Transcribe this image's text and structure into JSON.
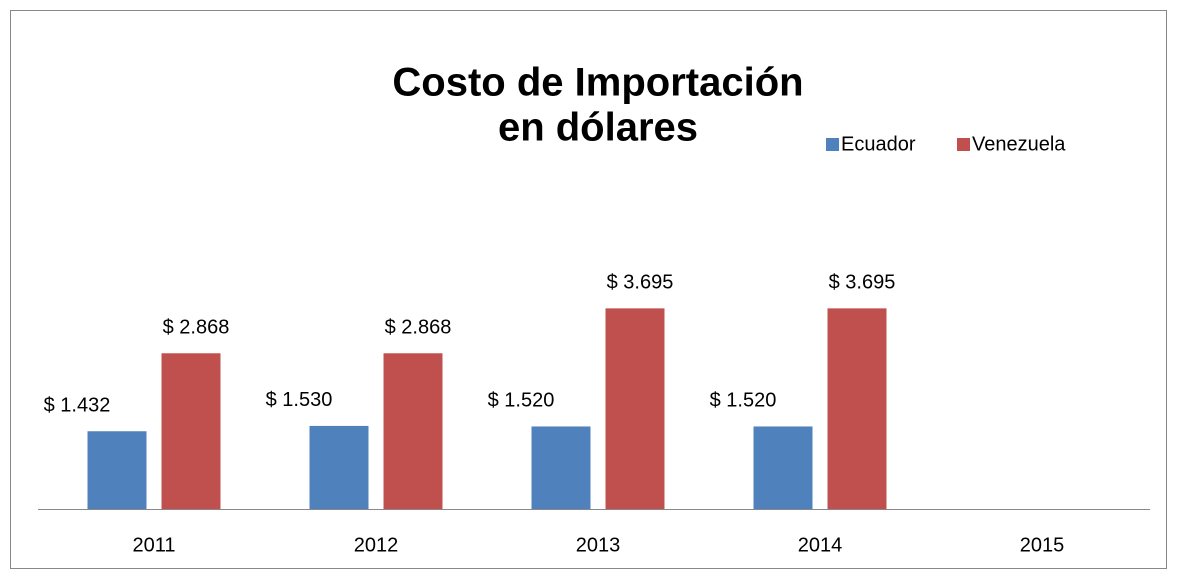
{
  "chart_data": {
    "type": "bar",
    "title": [
      "Costo de Importación",
      "en dólares"
    ],
    "categories": [
      "2011",
      "2012",
      "2013",
      "2014",
      "2015"
    ],
    "series": [
      {
        "name": "Ecuador",
        "color": "#4f81bd",
        "values": [
          1432,
          1530,
          1520,
          1520,
          null
        ],
        "value_labels": [
          "$ 1.432",
          "$ 1.530",
          "$ 1.520",
          "$ 1.520",
          null
        ]
      },
      {
        "name": "Venezuela",
        "color": "#c0504d",
        "values": [
          2868,
          2868,
          3695,
          3695,
          null
        ],
        "value_labels": [
          "$ 2.868",
          "$ 2.868",
          "$ 3.695",
          "$ 3.695",
          null
        ]
      }
    ],
    "legend": "top-right"
  }
}
